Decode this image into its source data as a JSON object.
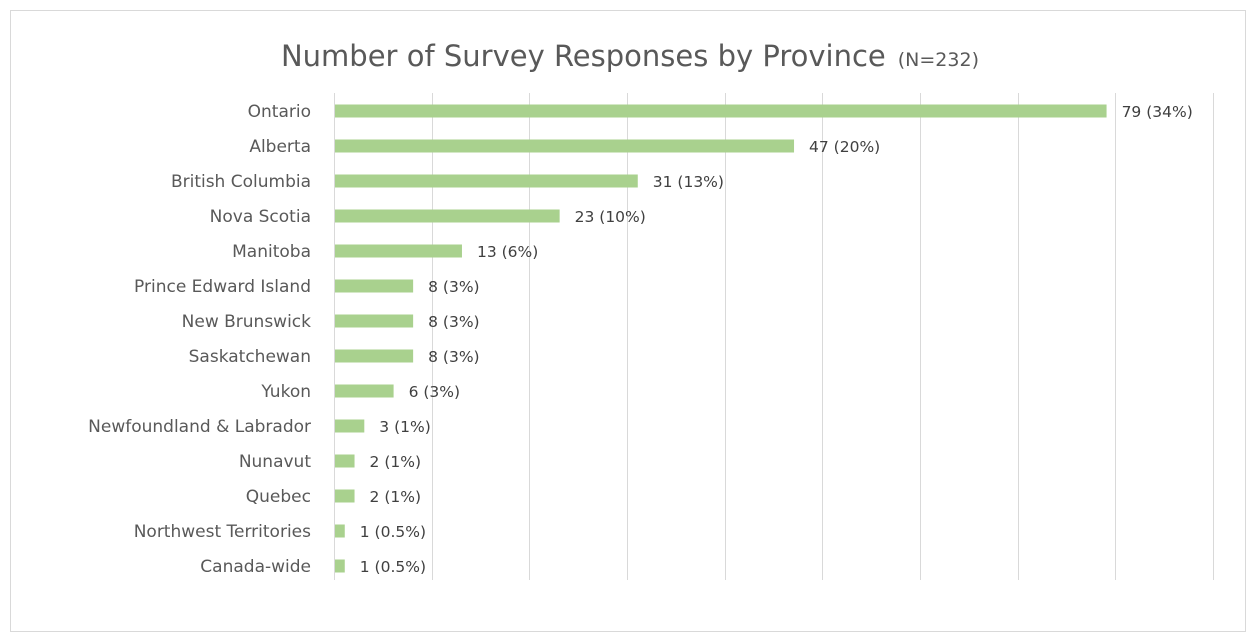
{
  "chart_data": {
    "type": "bar",
    "orientation": "horizontal",
    "title": "Number of Survey Responses by Province",
    "subtitle": "(N=232)",
    "xlabel": "",
    "ylabel": "",
    "xlim": [
      0,
      90
    ],
    "grid": true,
    "legend": "none",
    "bar_color": "#a9d18e",
    "categories": [
      "Ontario",
      "Alberta",
      "British Columbia",
      "Nova Scotia",
      "Manitoba",
      "Prince Edward Island",
      "New Brunswick",
      "Saskatchewan",
      "Yukon",
      "Newfoundland & Labrador",
      "Nunavut",
      "Quebec",
      "Northwest Territories",
      "Canada-wide"
    ],
    "values": [
      79,
      47,
      31,
      23,
      13,
      8,
      8,
      8,
      6,
      3,
      2,
      2,
      1,
      1
    ],
    "data_labels": [
      "79 (34%)",
      "47 (20%)",
      "31 (13%)",
      "23 (10%)",
      "13 (6%)",
      "8 (3%)",
      "8 (3%)",
      "8 (3%)",
      "6 (3%)",
      "3 (1%)",
      "2 (1%)",
      "2 (1%)",
      "1 (0.5%)",
      "1 (0.5%)"
    ]
  }
}
